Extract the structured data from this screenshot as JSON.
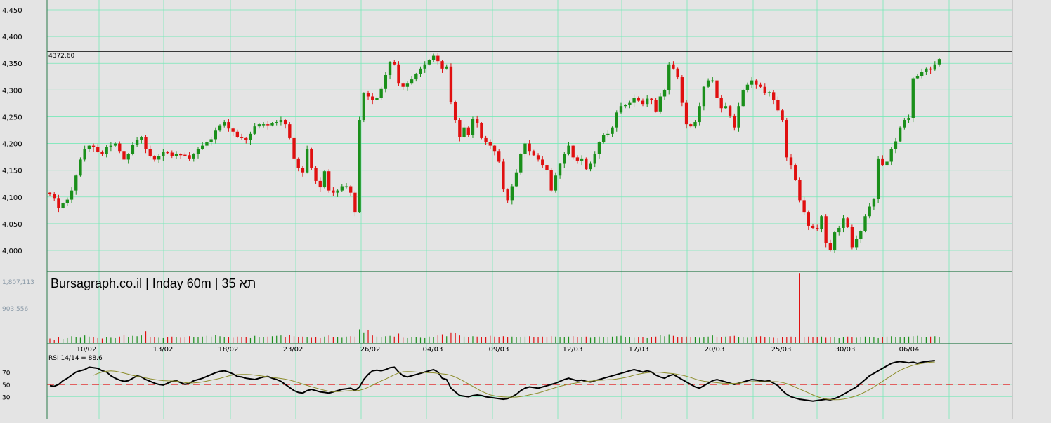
{
  "header": {
    "title": "Bursagraph.co.il | Inday 60m | תא 35"
  },
  "chart_data": {
    "type": "candlestick",
    "price_ticks": [
      "4,450",
      "4,400",
      "4,350",
      "4,300",
      "4,250",
      "4,200",
      "4,150",
      "4,100",
      "4,050",
      "4,000"
    ],
    "price_ylim": [
      3975,
      4460
    ],
    "resistance_label": "4372.60",
    "resistance_level": 4372.6,
    "volume_ticks": [
      "1,807,113",
      "903,556"
    ],
    "volume_max": 1807113,
    "date_labels": [
      "10/02",
      "13/02",
      "18/02",
      "23/02",
      "26/02",
      "04/03",
      "09/03",
      "12/03",
      "17/03",
      "20/03",
      "25/03",
      "30/03",
      "06/04"
    ],
    "rsi_label": "RSI 14/14 = 88.6",
    "rsi_ticks": [
      "70",
      "50",
      "30"
    ],
    "rsi_level": 50,
    "colors": {
      "up": "#1a8f1a",
      "down": "#e01010",
      "grid": "#78e8b8",
      "rsi": "#000000",
      "rsi_signal": "#8c8c2a",
      "rsi_mid": "#e01010",
      "separator": "#2a7a4a"
    },
    "closes": [
      4105,
      4098,
      4080,
      4088,
      4095,
      4112,
      4140,
      4170,
      4190,
      4196,
      4193,
      4185,
      4180,
      4194,
      4196,
      4200,
      4186,
      4170,
      4180,
      4198,
      4206,
      4212,
      4190,
      4176,
      4170,
      4176,
      4184,
      4183,
      4177,
      4180,
      4179,
      4178,
      4172,
      4180,
      4190,
      4196,
      4202,
      4208,
      4224,
      4234,
      4240,
      4228,
      4222,
      4212,
      4210,
      4206,
      4218,
      4232,
      4236,
      4236,
      4234,
      4238,
      4240,
      4244,
      4236,
      4210,
      4172,
      4154,
      4146,
      4190,
      4154,
      4130,
      4118,
      4148,
      4112,
      4108,
      4112,
      4120,
      4120,
      4108,
      4072,
      4244,
      4294,
      4288,
      4282,
      4286,
      4302,
      4328,
      4352,
      4348,
      4312,
      4306,
      4312,
      4320,
      4330,
      4340,
      4348,
      4356,
      4364,
      4354,
      4340,
      4344,
      4278,
      4244,
      4212,
      4230,
      4216,
      4246,
      4238,
      4210,
      4202,
      4196,
      4186,
      4166,
      4114,
      4094,
      4120,
      4146,
      4180,
      4200,
      4186,
      4178,
      4170,
      4160,
      4150,
      4112,
      4140,
      4162,
      4180,
      4196,
      4174,
      4168,
      4172,
      4152,
      4162,
      4180,
      4202,
      4216,
      4218,
      4230,
      4258,
      4270,
      4272,
      4276,
      4286,
      4280,
      4274,
      4284,
      4282,
      4260,
      4288,
      4300,
      4348,
      4340,
      4324,
      4276,
      4236,
      4232,
      4240,
      4270,
      4306,
      4318,
      4318,
      4286,
      4266,
      4270,
      4252,
      4230,
      4270,
      4300,
      4310,
      4318,
      4310,
      4306,
      4294,
      4296,
      4282,
      4262,
      4244,
      4174,
      4160,
      4132,
      4094,
      4072,
      4046,
      4042,
      4040,
      4064,
      4014,
      4000,
      4034,
      4042,
      4060,
      4044,
      4006,
      4022,
      4036,
      4064,
      4082,
      4096,
      4172,
      4160,
      4166,
      4190,
      4204,
      4230,
      4244,
      4248,
      4322,
      4326,
      4334,
      4340,
      4338,
      4348,
      4358
    ],
    "volumes": [
      120000,
      90000,
      150000,
      110000,
      130000,
      180000,
      160000,
      140000,
      200000,
      170000,
      150000,
      130000,
      120000,
      160000,
      140000,
      130000,
      170000,
      220000,
      150000,
      190000,
      180000,
      200000,
      310000,
      160000,
      150000,
      140000,
      130000,
      150000,
      170000,
      160000,
      140000,
      150000,
      180000,
      160000,
      150000,
      170000,
      190000,
      170000,
      210000,
      180000,
      160000,
      150000,
      140000,
      170000,
      160000,
      150000,
      130000,
      190000,
      160000,
      150000,
      170000,
      180000,
      190000,
      200000,
      160000,
      210000,
      180000,
      150000,
      170000,
      160000,
      140000,
      150000,
      130000,
      170000,
      200000,
      150000,
      160000,
      140000,
      170000,
      180000,
      170000,
      360000,
      280000,
      340000,
      200000,
      170000,
      150000,
      180000,
      190000,
      170000,
      250000,
      140000,
      130000,
      150000,
      160000,
      140000,
      130000,
      170000,
      150000,
      200000,
      230000,
      180000,
      280000,
      260000,
      200000,
      170000,
      160000,
      180000,
      170000,
      150000,
      160000,
      190000,
      170000,
      150000,
      180000,
      160000,
      170000,
      160000,
      150000,
      170000,
      180000,
      160000,
      150000,
      170000,
      160000,
      180000,
      170000,
      150000,
      160000,
      170000,
      180000,
      150000,
      160000,
      170000,
      140000,
      160000,
      170000,
      150000,
      160000,
      170000,
      180000,
      190000,
      150000,
      160000,
      140000,
      150000,
      160000,
      130000,
      150000,
      170000,
      220000,
      180000,
      230000,
      190000,
      160000,
      150000,
      170000,
      160000,
      150000,
      140000,
      160000,
      170000,
      200000,
      150000,
      160000,
      170000,
      180000,
      190000,
      160000,
      150000,
      140000,
      160000,
      170000,
      180000,
      160000,
      150000,
      140000,
      130000,
      150000,
      160000,
      170000,
      150000,
      1840000,
      160000,
      170000,
      150000,
      160000,
      170000,
      140000,
      150000,
      160000,
      130000,
      150000,
      170000,
      160000,
      140000,
      150000,
      170000,
      160000,
      150000,
      130000,
      160000,
      170000,
      180000,
      160000,
      150000,
      160000,
      170000,
      180000,
      190000,
      160000,
      150000,
      170000,
      180000,
      160000,
      150000,
      140000
    ],
    "rsi": [
      48,
      47,
      50,
      56,
      60,
      65,
      70,
      72,
      74,
      78,
      77,
      76,
      72,
      70,
      64,
      60,
      57,
      55,
      56,
      60,
      64,
      62,
      58,
      55,
      52,
      50,
      49,
      52,
      55,
      56,
      53,
      50,
      52,
      56,
      58,
      60,
      63,
      66,
      69,
      71,
      72,
      70,
      67,
      63,
      62,
      60,
      59,
      58,
      60,
      62,
      63,
      60,
      58,
      55,
      50,
      45,
      40,
      37,
      36,
      40,
      42,
      40,
      38,
      37,
      36,
      38,
      40,
      42,
      43,
      44,
      40,
      46,
      58,
      66,
      72,
      73,
      72,
      74,
      77,
      78,
      70,
      64,
      62,
      64,
      66,
      68,
      70,
      72,
      74,
      70,
      60,
      58,
      44,
      38,
      32,
      31,
      30,
      32,
      33,
      32,
      30,
      29,
      28,
      27,
      26,
      27,
      30,
      34,
      40,
      44,
      46,
      45,
      44,
      46,
      48,
      50,
      52,
      55,
      58,
      60,
      58,
      56,
      57,
      55,
      54,
      56,
      58,
      60,
      62,
      64,
      66,
      68,
      70,
      72,
      74,
      72,
      70,
      72,
      70,
      65,
      62,
      60,
      64,
      66,
      62,
      58,
      54,
      50,
      46,
      44,
      48,
      52,
      56,
      58,
      56,
      54,
      52,
      50,
      52,
      54,
      56,
      58,
      57,
      56,
      55,
      56,
      52,
      48,
      40,
      34,
      30,
      28,
      26,
      25,
      24,
      23,
      24,
      25,
      26,
      25,
      27,
      30,
      34,
      38,
      42,
      46,
      52,
      58,
      64,
      68,
      72,
      76,
      80,
      84,
      86,
      87,
      86,
      85,
      86,
      84,
      86,
      87,
      88,
      88.6
    ]
  }
}
